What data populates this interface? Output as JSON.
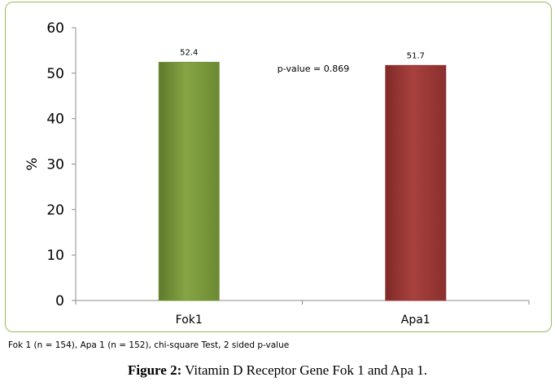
{
  "chart_data": {
    "type": "bar",
    "categories": [
      "Fok1",
      "Apa1"
    ],
    "values": [
      52.4,
      51.7
    ],
    "data_labels": [
      "52.4",
      "51.7"
    ],
    "colors": [
      "#77933c",
      "#953735"
    ],
    "title": "",
    "xlabel": "",
    "ylabel": "%",
    "ylim": [
      0,
      60
    ],
    "yticks": [
      0,
      10,
      20,
      30,
      40,
      50,
      60
    ],
    "annotation": "p-value = 0.869",
    "grid": false,
    "legend": "none"
  },
  "footnote": "Fok 1 (n = 154), Apa 1 (n = 152), chi-square Test, 2 sided p-value",
  "caption": {
    "label": "Figure 2:",
    "text": " Vitamin D Receptor Gene Fok 1 and Apa 1."
  },
  "frame_color": "#9bbb59"
}
